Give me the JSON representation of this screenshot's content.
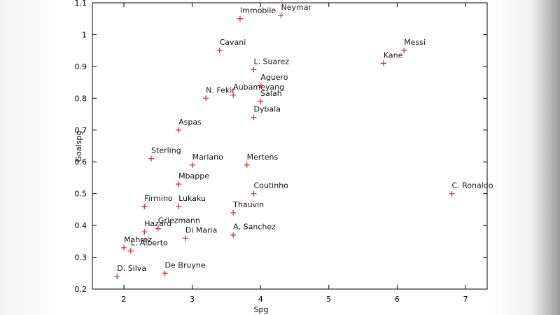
{
  "chart_data": {
    "type": "scatter",
    "title": "",
    "xlabel": "Spg",
    "ylabel": "Goalspg",
    "xlim": [
      1.8,
      7.3
    ],
    "ylim": [
      0.2,
      1.1
    ],
    "xticks": [
      "2",
      "3",
      "4",
      "5",
      "6",
      "7"
    ],
    "yticks": [
      "0.2",
      "0.3",
      "0.4",
      "0.5",
      "0.6",
      "0.7",
      "0.8",
      "0.9",
      "1",
      "1.1"
    ],
    "grid": false,
    "marker_color": "#e02020",
    "points": [
      {
        "label": "Immobile",
        "x": 3.7,
        "y": 1.05
      },
      {
        "label": "Neymar",
        "x": 4.3,
        "y": 1.06
      },
      {
        "label": "Cavani",
        "x": 3.4,
        "y": 0.95
      },
      {
        "label": "Messi",
        "x": 6.1,
        "y": 0.95
      },
      {
        "label": "Kane",
        "x": 5.8,
        "y": 0.91
      },
      {
        "label": "L. Suarez",
        "x": 3.9,
        "y": 0.89
      },
      {
        "label": "Aguero",
        "x": 4.0,
        "y": 0.84
      },
      {
        "label": "Aubameyang",
        "x": 3.6,
        "y": 0.81
      },
      {
        "label": "N. Fekir",
        "x": 3.2,
        "y": 0.8
      },
      {
        "label": "Salah",
        "x": 4.0,
        "y": 0.79
      },
      {
        "label": "Dybala",
        "x": 3.9,
        "y": 0.74
      },
      {
        "label": "Aspas",
        "x": 2.8,
        "y": 0.7
      },
      {
        "label": "Sterling",
        "x": 2.4,
        "y": 0.61
      },
      {
        "label": "Mariano",
        "x": 3.0,
        "y": 0.59
      },
      {
        "label": "Mertens",
        "x": 3.8,
        "y": 0.59
      },
      {
        "label": "Mbappe",
        "x": 2.8,
        "y": 0.53
      },
      {
        "label": "Coutinho",
        "x": 3.9,
        "y": 0.5
      },
      {
        "label": "C. Ronaldo",
        "x": 6.8,
        "y": 0.5
      },
      {
        "label": "Firmino",
        "x": 2.3,
        "y": 0.46
      },
      {
        "label": "Lukaku",
        "x": 2.8,
        "y": 0.46
      },
      {
        "label": "Thauvin",
        "x": 3.6,
        "y": 0.44
      },
      {
        "label": "Griezmann",
        "x": 2.5,
        "y": 0.39
      },
      {
        "label": "Hazard",
        "x": 2.3,
        "y": 0.38
      },
      {
        "label": "A, Sanchez",
        "x": 3.6,
        "y": 0.37
      },
      {
        "label": "Di Maria",
        "x": 2.9,
        "y": 0.36
      },
      {
        "label": "Mahrez",
        "x": 2.0,
        "y": 0.33
      },
      {
        "label": "L. Alberto",
        "x": 2.1,
        "y": 0.32
      },
      {
        "label": "De Bruyne",
        "x": 2.6,
        "y": 0.25
      },
      {
        "label": "D. Silva",
        "x": 1.9,
        "y": 0.24
      }
    ]
  }
}
